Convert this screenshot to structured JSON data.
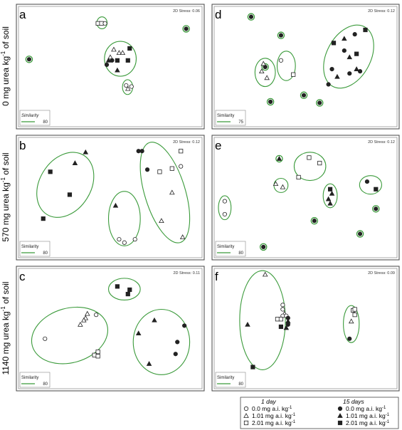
{
  "y_labels": [
    {
      "text": "0 mg urea kg"
    },
    {
      "text": "570 mg urea kg"
    },
    {
      "text": "1140 mg urea kg"
    }
  ],
  "y_label_sup": "-1",
  "y_label_suffix": " of soil",
  "legend": {
    "group1_title": "1 day",
    "group2_title": "15 days",
    "rows": [
      {
        "value": "0.0",
        "unit": "mg a.i. kg"
      },
      {
        "value": "1.01",
        "unit": "mg a.i. kg"
      },
      {
        "value": "2.01",
        "unit": "mg a.i. kg"
      }
    ],
    "unit_sup": "-1"
  },
  "colors": {
    "ellipse": "#3a9a3a",
    "marker": "#222222",
    "frame": "#444444"
  },
  "chart_data": [
    {
      "type": "scatter",
      "panel": "a",
      "stress": "2D Stress: 0.06",
      "similarity_label": "Similarity",
      "similarity_italic": true,
      "similarity_value": "80",
      "xlim": [
        0,
        1
      ],
      "ylim": [
        0,
        1
      ],
      "points": [
        {
          "x": 0.04,
          "y": 0.56,
          "shape": "circle",
          "fill": "ring"
        },
        {
          "x": 0.93,
          "y": 0.84,
          "shape": "circle",
          "fill": "ring"
        },
        {
          "x": 0.43,
          "y": 0.89,
          "shape": "square",
          "fill": "open"
        },
        {
          "x": 0.45,
          "y": 0.89,
          "shape": "square",
          "fill": "open"
        },
        {
          "x": 0.47,
          "y": 0.89,
          "shape": "circle",
          "fill": "open"
        },
        {
          "x": 0.52,
          "y": 0.65,
          "shape": "triangle",
          "fill": "open"
        },
        {
          "x": 0.55,
          "y": 0.62,
          "shape": "triangle",
          "fill": "open"
        },
        {
          "x": 0.57,
          "y": 0.62,
          "shape": "triangle",
          "fill": "open"
        },
        {
          "x": 0.5,
          "y": 0.58,
          "shape": "triangle",
          "fill": "open"
        },
        {
          "x": 0.49,
          "y": 0.55,
          "shape": "triangle",
          "fill": "filled"
        },
        {
          "x": 0.51,
          "y": 0.55,
          "shape": "circle",
          "fill": "filled"
        },
        {
          "x": 0.48,
          "y": 0.51,
          "shape": "circle",
          "fill": "filled"
        },
        {
          "x": 0.54,
          "y": 0.55,
          "shape": "square",
          "fill": "filled"
        },
        {
          "x": 0.61,
          "y": 0.66,
          "shape": "square",
          "fill": "filled"
        },
        {
          "x": 0.6,
          "y": 0.55,
          "shape": "square",
          "fill": "filled"
        },
        {
          "x": 0.54,
          "y": 0.46,
          "shape": "triangle",
          "fill": "filled"
        },
        {
          "x": 0.59,
          "y": 0.32,
          "shape": "circle",
          "fill": "open"
        },
        {
          "x": 0.62,
          "y": 0.31,
          "shape": "circle",
          "fill": "open"
        },
        {
          "x": 0.6,
          "y": 0.29,
          "shape": "triangle",
          "fill": "open"
        }
      ],
      "groups": [
        {
          "cx": 0.453,
          "cy": 0.895,
          "rx": 0.029,
          "ry": 0.055
        },
        {
          "cx": 0.557,
          "cy": 0.565,
          "rx": 0.09,
          "ry": 0.16
        },
        {
          "cx": 0.598,
          "cy": 0.305,
          "rx": 0.029,
          "ry": 0.068
        }
      ]
    },
    {
      "type": "scatter",
      "panel": "b",
      "stress": "2D Stress: 0.12",
      "similarity_label": "Similarity",
      "similarity_italic": false,
      "similarity_value": "80",
      "xlim": [
        0,
        1
      ],
      "ylim": [
        0,
        1
      ],
      "points": [
        {
          "x": 0.16,
          "y": 0.73,
          "shape": "square",
          "fill": "filled"
        },
        {
          "x": 0.3,
          "y": 0.81,
          "shape": "triangle",
          "fill": "filled"
        },
        {
          "x": 0.36,
          "y": 0.91,
          "shape": "triangle",
          "fill": "filled"
        },
        {
          "x": 0.27,
          "y": 0.52,
          "shape": "square",
          "fill": "filled"
        },
        {
          "x": 0.12,
          "y": 0.3,
          "shape": "square",
          "fill": "filled"
        },
        {
          "x": 0.53,
          "y": 0.42,
          "shape": "triangle",
          "fill": "filled"
        },
        {
          "x": 0.55,
          "y": 0.11,
          "shape": "circle",
          "fill": "open"
        },
        {
          "x": 0.58,
          "y": 0.08,
          "shape": "circle",
          "fill": "open"
        },
        {
          "x": 0.64,
          "y": 0.11,
          "shape": "circle",
          "fill": "open"
        },
        {
          "x": 0.66,
          "y": 0.92,
          "shape": "circle",
          "fill": "filled"
        },
        {
          "x": 0.68,
          "y": 0.92,
          "shape": "circle",
          "fill": "filled"
        },
        {
          "x": 0.71,
          "y": 0.75,
          "shape": "circle",
          "fill": "filled"
        },
        {
          "x": 0.78,
          "y": 0.73,
          "shape": "square",
          "fill": "open"
        },
        {
          "x": 0.85,
          "y": 0.76,
          "shape": "square",
          "fill": "open"
        },
        {
          "x": 0.9,
          "y": 0.92,
          "shape": "square",
          "fill": "open"
        },
        {
          "x": 0.9,
          "y": 0.78,
          "shape": "circle",
          "fill": "open"
        },
        {
          "x": 0.85,
          "y": 0.54,
          "shape": "triangle",
          "fill": "open"
        },
        {
          "x": 0.79,
          "y": 0.28,
          "shape": "triangle",
          "fill": "open"
        },
        {
          "x": 0.91,
          "y": 0.13,
          "shape": "triangle",
          "fill": "open"
        }
      ],
      "groups": [
        {
          "cx": 0.245,
          "cy": 0.61,
          "rx": 0.145,
          "ry": 0.32,
          "rot": 32
        },
        {
          "cx": 0.58,
          "cy": 0.3,
          "rx": 0.09,
          "ry": 0.25
        },
        {
          "cx": 0.81,
          "cy": 0.54,
          "rx": 0.115,
          "ry": 0.48,
          "rot": -17
        }
      ]
    },
    {
      "type": "scatter",
      "panel": "c",
      "stress": "2D Stress: 0.11",
      "similarity_label": "Similarity",
      "similarity_italic": false,
      "similarity_value": "80",
      "xlim": [
        0,
        1
      ],
      "ylim": [
        0,
        1
      ],
      "points": [
        {
          "x": 0.54,
          "y": 0.88,
          "shape": "square",
          "fill": "filled"
        },
        {
          "x": 0.6,
          "y": 0.81,
          "shape": "square",
          "fill": "filled"
        },
        {
          "x": 0.61,
          "y": 0.85,
          "shape": "square",
          "fill": "filled"
        },
        {
          "x": 0.37,
          "y": 0.63,
          "shape": "triangle",
          "fill": "open"
        },
        {
          "x": 0.42,
          "y": 0.62,
          "shape": "circle",
          "fill": "open"
        },
        {
          "x": 0.36,
          "y": 0.59,
          "shape": "triangle",
          "fill": "open"
        },
        {
          "x": 0.35,
          "y": 0.57,
          "shape": "triangle",
          "fill": "open"
        },
        {
          "x": 0.33,
          "y": 0.53,
          "shape": "triangle",
          "fill": "open"
        },
        {
          "x": 0.13,
          "y": 0.4,
          "shape": "circle",
          "fill": "open"
        },
        {
          "x": 0.43,
          "y": 0.28,
          "shape": "square",
          "fill": "open"
        },
        {
          "x": 0.41,
          "y": 0.25,
          "shape": "square",
          "fill": "open"
        },
        {
          "x": 0.43,
          "y": 0.24,
          "shape": "square",
          "fill": "open"
        },
        {
          "x": 0.75,
          "y": 0.57,
          "shape": "triangle",
          "fill": "filled"
        },
        {
          "x": 0.92,
          "y": 0.52,
          "shape": "circle",
          "fill": "filled"
        },
        {
          "x": 0.66,
          "y": 0.45,
          "shape": "triangle",
          "fill": "filled"
        },
        {
          "x": 0.88,
          "y": 0.37,
          "shape": "circle",
          "fill": "filled"
        },
        {
          "x": 0.87,
          "y": 0.26,
          "shape": "circle",
          "fill": "filled"
        },
        {
          "x": 0.72,
          "y": 0.17,
          "shape": "triangle",
          "fill": "filled"
        }
      ],
      "groups": [
        {
          "cx": 0.58,
          "cy": 0.855,
          "rx": 0.09,
          "ry": 0.1
        },
        {
          "cx": 0.27,
          "cy": 0.43,
          "rx": 0.22,
          "ry": 0.25,
          "rot": -16
        },
        {
          "cx": 0.79,
          "cy": 0.37,
          "rx": 0.16,
          "ry": 0.3
        }
      ]
    },
    {
      "type": "scatter",
      "panel": "d",
      "stress": "2D Stress: 0.12",
      "similarity_label": "Similarity",
      "similarity_italic": false,
      "similarity_value": "75",
      "xlim": [
        0,
        1
      ],
      "ylim": [
        0,
        1
      ],
      "points": [
        {
          "x": 0.19,
          "y": 0.95,
          "shape": "circle",
          "fill": "ring"
        },
        {
          "x": 0.36,
          "y": 0.78,
          "shape": "circle",
          "fill": "ring"
        },
        {
          "x": 0.3,
          "y": 0.17,
          "shape": "circle",
          "fill": "ring"
        },
        {
          "x": 0.27,
          "y": 0.49,
          "shape": "circle",
          "fill": "ring"
        },
        {
          "x": 0.49,
          "y": 0.23,
          "shape": "circle",
          "fill": "ring"
        },
        {
          "x": 0.58,
          "y": 0.16,
          "shape": "circle",
          "fill": "ring"
        },
        {
          "x": 0.36,
          "y": 0.55,
          "shape": "circle",
          "fill": "open"
        },
        {
          "x": 0.26,
          "y": 0.52,
          "shape": "triangle",
          "fill": "open"
        },
        {
          "x": 0.25,
          "y": 0.45,
          "shape": "triangle",
          "fill": "open"
        },
        {
          "x": 0.28,
          "y": 0.39,
          "shape": "triangle",
          "fill": "open"
        },
        {
          "x": 0.43,
          "y": 0.42,
          "shape": "square",
          "fill": "open"
        },
        {
          "x": 0.66,
          "y": 0.71,
          "shape": "square",
          "fill": "filled"
        },
        {
          "x": 0.72,
          "y": 0.75,
          "shape": "triangle",
          "fill": "filled"
        },
        {
          "x": 0.78,
          "y": 0.79,
          "shape": "circle",
          "fill": "filled"
        },
        {
          "x": 0.84,
          "y": 0.83,
          "shape": "square",
          "fill": "filled"
        },
        {
          "x": 0.72,
          "y": 0.64,
          "shape": "circle",
          "fill": "filled"
        },
        {
          "x": 0.75,
          "y": 0.58,
          "shape": "triangle",
          "fill": "filled"
        },
        {
          "x": 0.79,
          "y": 0.61,
          "shape": "square",
          "fill": "filled"
        },
        {
          "x": 0.65,
          "y": 0.47,
          "shape": "circle",
          "fill": "filled"
        },
        {
          "x": 0.79,
          "y": 0.47,
          "shape": "triangle",
          "fill": "filled"
        },
        {
          "x": 0.75,
          "y": 0.43,
          "shape": "circle",
          "fill": "filled"
        },
        {
          "x": 0.81,
          "y": 0.45,
          "shape": "circle",
          "fill": "filled"
        },
        {
          "x": 0.68,
          "y": 0.4,
          "shape": "triangle",
          "fill": "filled"
        },
        {
          "x": 0.63,
          "y": 0.33,
          "shape": "circle",
          "fill": "filled"
        }
      ],
      "groups": [
        {
          "cx": 0.27,
          "cy": 0.44,
          "rx": 0.058,
          "ry": 0.13
        },
        {
          "cx": 0.39,
          "cy": 0.5,
          "rx": 0.052,
          "ry": 0.135
        },
        {
          "cx": 0.745,
          "cy": 0.585,
          "rx": 0.125,
          "ry": 0.31,
          "rot": 28
        }
      ]
    },
    {
      "type": "scatter",
      "panel": "e",
      "stress": "2D Stress: 0.12",
      "similarity_label": "Similarity",
      "similarity_italic": false,
      "similarity_value": "80",
      "xlim": [
        0,
        1
      ],
      "ylim": [
        0,
        1
      ],
      "points": [
        {
          "x": 0.35,
          "y": 0.85,
          "shape": "triangle",
          "fill": "ring"
        },
        {
          "x": 0.52,
          "y": 0.86,
          "shape": "square",
          "fill": "open"
        },
        {
          "x": 0.58,
          "y": 0.81,
          "shape": "square",
          "fill": "open"
        },
        {
          "x": 0.46,
          "y": 0.68,
          "shape": "square",
          "fill": "open"
        },
        {
          "x": 0.33,
          "y": 0.62,
          "shape": "triangle",
          "fill": "open"
        },
        {
          "x": 0.37,
          "y": 0.59,
          "shape": "triangle",
          "fill": "open"
        },
        {
          "x": 0.04,
          "y": 0.46,
          "shape": "circle",
          "fill": "open"
        },
        {
          "x": 0.04,
          "y": 0.34,
          "shape": "circle",
          "fill": "open"
        },
        {
          "x": 0.64,
          "y": 0.57,
          "shape": "square",
          "fill": "filled"
        },
        {
          "x": 0.65,
          "y": 0.53,
          "shape": "triangle",
          "fill": "filled"
        },
        {
          "x": 0.63,
          "y": 0.48,
          "shape": "triangle",
          "fill": "filled"
        },
        {
          "x": 0.64,
          "y": 0.44,
          "shape": "triangle",
          "fill": "filled"
        },
        {
          "x": 0.85,
          "y": 0.64,
          "shape": "circle",
          "fill": "filled"
        },
        {
          "x": 0.9,
          "y": 0.57,
          "shape": "square",
          "fill": "filled"
        },
        {
          "x": 0.9,
          "y": 0.39,
          "shape": "circle",
          "fill": "ring"
        },
        {
          "x": 0.55,
          "y": 0.28,
          "shape": "circle",
          "fill": "ring"
        },
        {
          "x": 0.81,
          "y": 0.16,
          "shape": "circle",
          "fill": "ring"
        },
        {
          "x": 0.26,
          "y": 0.04,
          "shape": "circle",
          "fill": "ring"
        }
      ],
      "groups": [
        {
          "cx": 0.525,
          "cy": 0.78,
          "rx": 0.09,
          "ry": 0.13
        },
        {
          "cx": 0.36,
          "cy": 0.605,
          "rx": 0.04,
          "ry": 0.065
        },
        {
          "cx": 0.04,
          "cy": 0.4,
          "rx": 0.036,
          "ry": 0.11
        },
        {
          "cx": 0.64,
          "cy": 0.51,
          "rx": 0.04,
          "ry": 0.11
        },
        {
          "cx": 0.87,
          "cy": 0.61,
          "rx": 0.063,
          "ry": 0.085
        }
      ]
    },
    {
      "type": "scatter",
      "panel": "f",
      "stress": "2D Stress: 0.09",
      "similarity_label": "Similarity",
      "similarity_italic": false,
      "similarity_value": "80",
      "xlim": [
        0,
        1
      ],
      "ylim": [
        0,
        1
      ],
      "points": [
        {
          "x": 0.27,
          "y": 0.99,
          "shape": "triangle",
          "fill": "open"
        },
        {
          "x": 0.37,
          "y": 0.71,
          "shape": "circle",
          "fill": "open"
        },
        {
          "x": 0.37,
          "y": 0.67,
          "shape": "circle",
          "fill": "open"
        },
        {
          "x": 0.38,
          "y": 0.63,
          "shape": "triangle",
          "fill": "open"
        },
        {
          "x": 0.37,
          "y": 0.61,
          "shape": "circle",
          "fill": "open"
        },
        {
          "x": 0.39,
          "y": 0.61,
          "shape": "circle",
          "fill": "open"
        },
        {
          "x": 0.4,
          "y": 0.59,
          "shape": "circle",
          "fill": "filled"
        },
        {
          "x": 0.34,
          "y": 0.58,
          "shape": "square",
          "fill": "open"
        },
        {
          "x": 0.36,
          "y": 0.58,
          "shape": "square",
          "fill": "open"
        },
        {
          "x": 0.4,
          "y": 0.56,
          "shape": "triangle",
          "fill": "filled"
        },
        {
          "x": 0.4,
          "y": 0.53,
          "shape": "circle",
          "fill": "filled"
        },
        {
          "x": 0.36,
          "y": 0.51,
          "shape": "square",
          "fill": "filled"
        },
        {
          "x": 0.39,
          "y": 0.5,
          "shape": "triangle",
          "fill": "filled"
        },
        {
          "x": 0.17,
          "y": 0.53,
          "shape": "triangle",
          "fill": "filled"
        },
        {
          "x": 0.2,
          "y": 0.14,
          "shape": "square",
          "fill": "filled"
        },
        {
          "x": 0.77,
          "y": 0.66,
          "shape": "square",
          "fill": "open"
        },
        {
          "x": 0.78,
          "y": 0.67,
          "shape": "square",
          "fill": "open"
        },
        {
          "x": 0.78,
          "y": 0.62,
          "shape": "square",
          "fill": "open"
        },
        {
          "x": 0.76,
          "y": 0.56,
          "shape": "triangle",
          "fill": "open"
        },
        {
          "x": 0.75,
          "y": 0.4,
          "shape": "circle",
          "fill": "filled"
        }
      ],
      "groups": [
        {
          "cx": 0.255,
          "cy": 0.57,
          "rx": 0.13,
          "ry": 0.455
        },
        {
          "cx": 0.76,
          "cy": 0.535,
          "rx": 0.045,
          "ry": 0.17
        }
      ]
    }
  ]
}
